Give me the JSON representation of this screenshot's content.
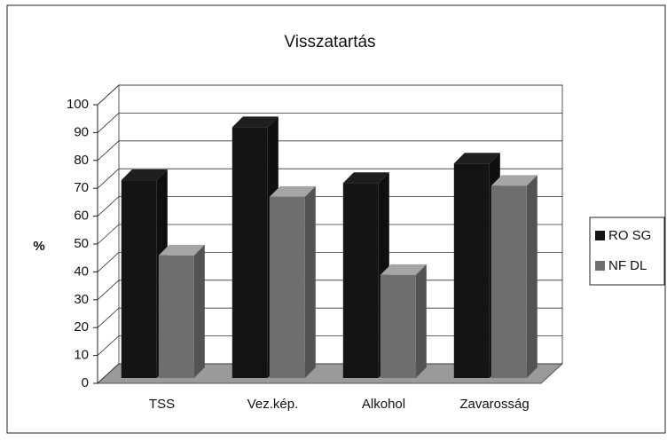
{
  "chart_data": {
    "type": "bar3d",
    "title": "Visszatartás",
    "y_label": "%",
    "categories": [
      "TSS",
      "Vez.kép.",
      "Alkohol",
      "Zavarosság"
    ],
    "series": [
      {
        "name": "RO SG",
        "color": "#141414",
        "values": [
          71,
          90,
          70,
          77
        ]
      },
      {
        "name": "NF DL",
        "color": "#6e6e6e",
        "values": [
          44,
          65,
          37,
          69
        ]
      }
    ],
    "ylim": [
      0,
      100
    ],
    "yticks": [
      0,
      10,
      20,
      30,
      40,
      50,
      60,
      70,
      80,
      90,
      100
    ],
    "grid": true,
    "legend": "right"
  }
}
